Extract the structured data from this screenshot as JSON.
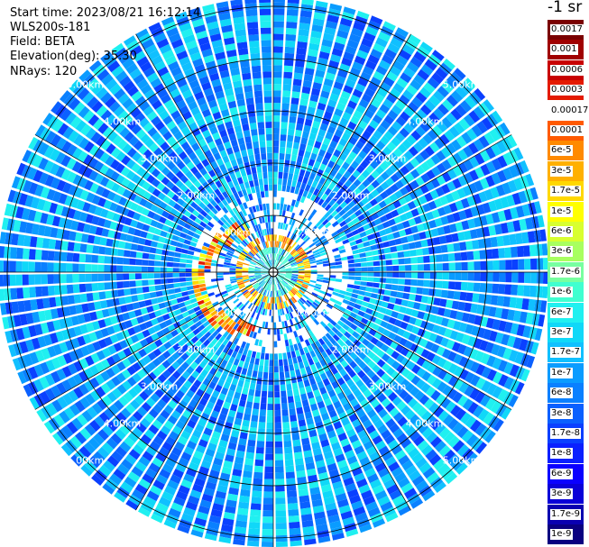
{
  "header": {
    "start_time": "Start time: 2023/08/21 16:12:14",
    "instrument": "WLS200s-181",
    "field": "Field: BETA",
    "elevation": "Elevation(deg): 35.30",
    "nrays": "NRays: 120"
  },
  "colorbar": {
    "unit_label": "-1 sr",
    "labels": [
      "0.0017",
      "0.001",
      "0.0006",
      "0.0003",
      "0.00017",
      "0.0001",
      "6e-5",
      "3e-5",
      "1.7e-5",
      "1e-5",
      "6e-6",
      "3e-6",
      "1.7e-6",
      "1e-6",
      "6e-7",
      "3e-7",
      "1.7e-7",
      "1e-7",
      "6e-8",
      "3e-8",
      "1.7e-8",
      "1e-8",
      "6e-9",
      "3e-9",
      "1.7e-9",
      "1e-9"
    ],
    "colors": [
      "#7a0000",
      "#a00000",
      "#c80000",
      "#e41a00",
      "#ffffff",
      "#ff5a00",
      "#ff8a00",
      "#ffb000",
      "#ffd800",
      "#ffff00",
      "#d8ff30",
      "#a8ff60",
      "#78ffa0",
      "#40ffd0",
      "#20f0f0",
      "#10d8f8",
      "#10c0ff",
      "#0a9cff",
      "#0a80ff",
      "#0a60ff",
      "#0a40ff",
      "#0a20ff",
      "#0a00ff",
      "#0a00d8",
      "#0a00b0",
      "#0a0080"
    ]
  },
  "chart_data": {
    "type": "heatmap",
    "projection": "PPI (polar)",
    "field": "BETA",
    "elevation_deg": 35.3,
    "n_rays": 120,
    "range_rings_km": [
      1,
      2,
      3,
      4,
      5
    ],
    "ring_labels": [
      "1.00km",
      "2.00km",
      "3.00km",
      "4.00km",
      "5.00km"
    ],
    "color_scale": "log",
    "value_range": [
      1e-09,
      0.0017
    ],
    "typical_background": "1e-7 to 1e-8 (blue/cyan)",
    "feature": "high-backscatter arc (1e-5 to 1e-4) at ~0.5-1.5 km, west and south-west of the lidar"
  }
}
